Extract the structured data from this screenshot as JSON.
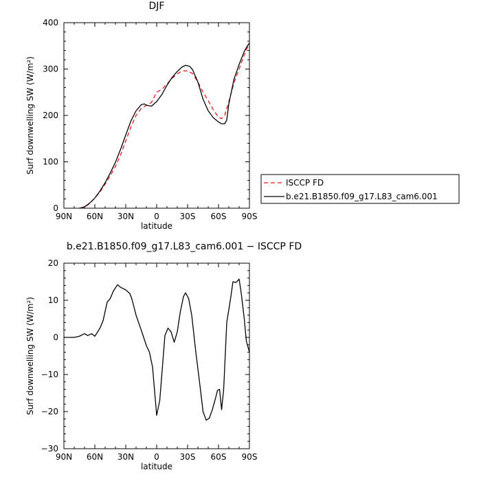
{
  "chart_data": [
    {
      "type": "line",
      "title": "DJF",
      "xlabel": "latitude",
      "ylabel": "Surf downwelling SW (W/m²)",
      "xlim": [
        90,
        -90
      ],
      "ylim": [
        0,
        400
      ],
      "xticks": [
        90,
        60,
        30,
        0,
        -30,
        -60,
        -90
      ],
      "xtick_labels": [
        "90N",
        "60N",
        "30N",
        "0",
        "30S",
        "60S",
        "90S"
      ],
      "yticks": [
        0,
        100,
        200,
        300,
        400
      ],
      "ytick_labels": [
        "0",
        "100",
        "200",
        "300",
        "400"
      ],
      "legend": {
        "placement": "right-outside"
      },
      "series": [
        {
          "name": "ISCCP FD",
          "color": "#e0191e",
          "dash": "dashed",
          "points": [
            [
              75,
              0
            ],
            [
              70,
              2
            ],
            [
              65,
              10
            ],
            [
              60,
              22
            ],
            [
              55,
              35
            ],
            [
              50,
              52
            ],
            [
              45,
              70
            ],
            [
              40,
              90
            ],
            [
              35,
              115
            ],
            [
              30,
              145
            ],
            [
              25,
              175
            ],
            [
              20,
              200
            ],
            [
              15,
              215
            ],
            [
              10,
              222
            ],
            [
              5,
              228
            ],
            [
              0,
              250
            ],
            [
              -5,
              256
            ],
            [
              -10,
              268
            ],
            [
              -15,
              280
            ],
            [
              -20,
              290
            ],
            [
              -25,
              296
            ],
            [
              -30,
              296
            ],
            [
              -35,
              290
            ],
            [
              -40,
              272
            ],
            [
              -45,
              250
            ],
            [
              -50,
              232
            ],
            [
              -55,
              212
            ],
            [
              -60,
              196
            ],
            [
              -63,
              193
            ],
            [
              -66,
              200
            ],
            [
              -70,
              230
            ],
            [
              -75,
              270
            ],
            [
              -80,
              300
            ],
            [
              -85,
              330
            ],
            [
              -90,
              357
            ]
          ]
        },
        {
          "name": "b.e21.B1850.f09_g17.L83_cam6.001",
          "color": "#000000",
          "dash": "solid",
          "points": [
            [
              75,
              0
            ],
            [
              70,
              3
            ],
            [
              65,
              11
            ],
            [
              60,
              22
            ],
            [
              55,
              37
            ],
            [
              50,
              55
            ],
            [
              45,
              76
            ],
            [
              40,
              99
            ],
            [
              35,
              127
            ],
            [
              30,
              158
            ],
            [
              25,
              188
            ],
            [
              20,
              210
            ],
            [
              15,
              223
            ],
            [
              12,
              225
            ],
            [
              10,
              222
            ],
            [
              5,
              220
            ],
            [
              0,
              230
            ],
            [
              -5,
              245
            ],
            [
              -10,
              265
            ],
            [
              -15,
              282
            ],
            [
              -20,
              295
            ],
            [
              -25,
              305
            ],
            [
              -28,
              308
            ],
            [
              -32,
              306
            ],
            [
              -35,
              298
            ],
            [
              -40,
              272
            ],
            [
              -45,
              235
            ],
            [
              -50,
              210
            ],
            [
              -55,
              195
            ],
            [
              -60,
              186
            ],
            [
              -63,
              182
            ],
            [
              -66,
              182
            ],
            [
              -68,
              190
            ],
            [
              -70,
              225
            ],
            [
              -75,
              278
            ],
            [
              -80,
              310
            ],
            [
              -85,
              338
            ],
            [
              -88,
              350
            ],
            [
              -90,
              356
            ]
          ]
        }
      ]
    },
    {
      "type": "line",
      "title": "b.e21.B1850.f09_g17.L83_cam6.001 − ISCCP FD",
      "xlabel": "latitude",
      "ylabel": "Surf downwelling SW (W/m²)",
      "xlim": [
        90,
        -90
      ],
      "ylim": [
        -30,
        20
      ],
      "xticks": [
        90,
        60,
        30,
        0,
        -30,
        -60,
        -90
      ],
      "xtick_labels": [
        "90N",
        "60N",
        "30N",
        "0",
        "30S",
        "60S",
        "90S"
      ],
      "yticks": [
        -30,
        -20,
        -10,
        0,
        10,
        20
      ],
      "ytick_labels": [
        "−30",
        "−20",
        "−10",
        "0",
        "10",
        "20"
      ],
      "series": [
        {
          "color": "#000000",
          "dash": "solid",
          "points": [
            [
              90,
              0
            ],
            [
              80,
              0
            ],
            [
              75,
              0.3
            ],
            [
              70,
              1
            ],
            [
              67,
              0.5
            ],
            [
              63,
              1
            ],
            [
              60,
              0.3
            ],
            [
              55,
              2.5
            ],
            [
              52,
              4.5
            ],
            [
              48,
              9.5
            ],
            [
              45,
              10.5
            ],
            [
              42,
              12.5
            ],
            [
              38,
              14.2
            ],
            [
              35,
              13.5
            ],
            [
              30,
              12.8
            ],
            [
              26,
              11.8
            ],
            [
              24,
              10.3
            ],
            [
              20,
              6
            ],
            [
              15,
              2
            ],
            [
              10,
              -2.2
            ],
            [
              7,
              -4
            ],
            [
              4,
              -8
            ],
            [
              0,
              -21
            ],
            [
              -3,
              -17
            ],
            [
              -8,
              0.5
            ],
            [
              -11,
              2.5
            ],
            [
              -14,
              1.5
            ],
            [
              -17,
              -1.3
            ],
            [
              -20,
              1.5
            ],
            [
              -23,
              7
            ],
            [
              -26,
              11
            ],
            [
              -28,
              12
            ],
            [
              -31,
              10.5
            ],
            [
              -34,
              6
            ],
            [
              -38,
              -4
            ],
            [
              -42,
              -13
            ],
            [
              -45,
              -20
            ],
            [
              -48,
              -22.3
            ],
            [
              -51,
              -21.8
            ],
            [
              -54,
              -19.5
            ],
            [
              -57,
              -16.5
            ],
            [
              -59,
              -14.3
            ],
            [
              -61,
              -14
            ],
            [
              -63,
              -19.5
            ],
            [
              -65,
              -14
            ],
            [
              -68,
              4
            ],
            [
              -72,
              11
            ],
            [
              -74,
              15
            ],
            [
              -77,
              14.8
            ],
            [
              -80,
              15.7
            ],
            [
              -82,
              12
            ],
            [
              -85,
              5
            ],
            [
              -87,
              -1
            ],
            [
              -90,
              -4
            ]
          ]
        }
      ]
    }
  ]
}
